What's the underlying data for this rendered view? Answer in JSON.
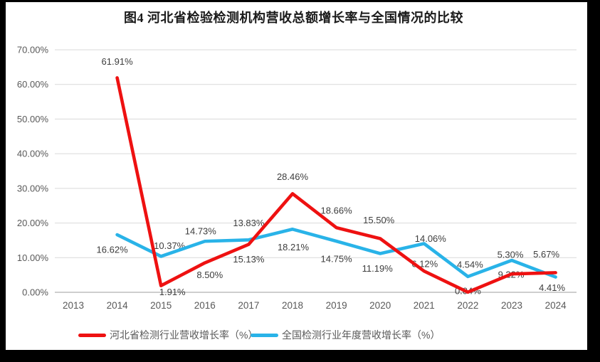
{
  "title": "图4 河北省检验检测机构营收总额增长率与全国情况的比较",
  "chart_data": {
    "type": "line",
    "title": "图4 河北省检验检测机构营收总额增长率与全国情况的比较",
    "categories": [
      "2013",
      "2014",
      "2015",
      "2016",
      "2017",
      "2018",
      "2019",
      "2020",
      "2021",
      "2022",
      "2023",
      "2024"
    ],
    "series": [
      {
        "key": "hebei",
        "name": "河北省检测行业营收增长率（%）",
        "color": "#ee1111",
        "values": [
          null,
          61.91,
          1.91,
          8.5,
          13.83,
          28.46,
          18.66,
          15.5,
          6.12,
          0.04,
          5.3,
          5.67
        ],
        "labels": [
          null,
          "61.91%",
          "1.91%",
          "8.50%",
          "13.83%",
          "28.46%",
          "18.66%",
          "15.50%",
          "6.12%",
          "0.04%",
          "5.30%",
          "5.67%"
        ],
        "label_offsets": [
          null,
          [
            0,
            -23
          ],
          [
            16,
            9
          ],
          [
            7,
            17
          ],
          [
            0,
            -30
          ],
          [
            0,
            -24
          ],
          [
            0,
            -24
          ],
          [
            -2,
            -26
          ],
          [
            1,
            -10
          ],
          [
            0,
            -2
          ],
          [
            -2,
            -27
          ],
          [
            -13,
            -26
          ]
        ]
      },
      {
        "key": "national",
        "name": "全国检测行业年度营收增长率（%）",
        "color": "#29b3e8",
        "values": [
          null,
          16.62,
          10.37,
          14.73,
          15.13,
          18.21,
          14.75,
          11.19,
          14.06,
          4.54,
          9.22,
          4.41
        ],
        "labels": [
          null,
          "16.62%",
          "10.37%",
          "14.73%",
          "15.13%",
          "18.21%",
          "14.75%",
          "11.19%",
          "14.06%",
          "4.54%",
          "9.22%",
          "4.41%"
        ],
        "label_offsets": [
          null,
          [
            -7,
            21
          ],
          [
            12,
            -15
          ],
          [
            -6,
            -14
          ],
          [
            0,
            27
          ],
          [
            1,
            25
          ],
          [
            0,
            25
          ],
          [
            -4,
            21
          ],
          [
            9,
            -7
          ],
          [
            3,
            -17
          ],
          [
            -1,
            20
          ],
          [
            -5,
            15
          ]
        ]
      }
    ],
    "yticks": [
      {
        "value": 0,
        "label": "0.00%"
      },
      {
        "value": 10,
        "label": "10.00%"
      },
      {
        "value": 20,
        "label": "20.00%"
      },
      {
        "value": 30,
        "label": "30.00%"
      },
      {
        "value": 40,
        "label": "40.00%"
      },
      {
        "value": 50,
        "label": "50.00%"
      },
      {
        "value": 60,
        "label": "60.00%"
      },
      {
        "value": 70,
        "label": "70.00%"
      }
    ],
    "ylim": [
      0,
      70
    ],
    "xlabel": "",
    "ylabel": "",
    "grid": true,
    "legend_position": "bottom"
  },
  "legend": {
    "items": [
      {
        "label": "河北省检测行业营收增长率（%）",
        "color": "#ee1111"
      },
      {
        "label": "全国检测行业年度营收增长率（%）",
        "color": "#29b3e8"
      }
    ]
  },
  "colors": {
    "grid": "#d9d9d9",
    "axis_line": "#bdbdbd",
    "axis_text": "#595959",
    "data_label": "#3d3d3d"
  }
}
